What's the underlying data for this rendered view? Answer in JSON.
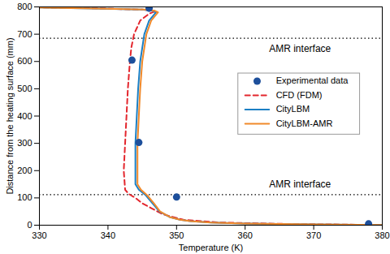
{
  "chart_data": {
    "type": "line",
    "x_label": "Temperature (K)",
    "y_label": "Distance from the heating surface (mm)",
    "xlim": [
      330,
      380
    ],
    "xticks": [
      330,
      340,
      350,
      360,
      370,
      380
    ],
    "ylim": [
      0,
      800
    ],
    "yticks": [
      0,
      100,
      200,
      300,
      400,
      500,
      600,
      700,
      800
    ],
    "grid": false,
    "legend": "right",
    "annotations": [
      {
        "text": "AMR interface",
        "y": 685
      },
      {
        "text": "AMR interface",
        "y": 112
      }
    ],
    "series": [
      {
        "name": "CFD (FDM)",
        "type": "line",
        "line_style": "dashed",
        "color": "#e3262d",
        "y": [
          0,
          5,
          10,
          20,
          40,
          60,
          80,
          100,
          115,
          130,
          200,
          300,
          400,
          500,
          600,
          650,
          700,
          750,
          775,
          785,
          790,
          795,
          798
        ],
        "values": [
          382,
          365,
          356,
          351,
          348,
          346.5,
          345,
          344,
          343,
          342.5,
          342.3,
          342.5,
          342.7,
          342.9,
          343.2,
          343.4,
          343.8,
          344.7,
          346,
          347,
          345,
          338,
          330
        ]
      },
      {
        "name": "CityLBM",
        "type": "line",
        "line_style": "solid",
        "color": "#1b7fc4",
        "y": [
          0,
          3,
          6,
          10,
          15,
          20,
          30,
          50,
          80,
          110,
          130,
          150,
          200,
          300,
          400,
          500,
          600,
          700,
          750,
          780,
          786,
          790,
          794,
          797,
          798
        ],
        "values": [
          382,
          370,
          360,
          355,
          352,
          350.5,
          349,
          347.5,
          346.5,
          345.5,
          344.5,
          344,
          344,
          344,
          344.2,
          344.4,
          344.7,
          345.3,
          346,
          347,
          346.5,
          345,
          338,
          331,
          330
        ]
      },
      {
        "name": "CityLBM-AMR",
        "type": "line",
        "line_style": "solid",
        "color": "#f0892a",
        "y": [
          0,
          3,
          6,
          10,
          15,
          20,
          30,
          50,
          80,
          110,
          130,
          150,
          200,
          300,
          400,
          500,
          600,
          700,
          750,
          780,
          786,
          790,
          794,
          797,
          798
        ],
        "values": [
          382,
          370,
          360,
          355,
          352,
          350.5,
          349,
          347.6,
          346.7,
          345.7,
          344.8,
          344.3,
          344.3,
          344.3,
          344.5,
          344.7,
          345,
          345.6,
          346.3,
          347.3,
          346.8,
          345.3,
          338.3,
          331.3,
          330
        ]
      },
      {
        "name": "Experimental data",
        "type": "scatter",
        "marker": "circle",
        "color": "#1d4f9b",
        "y": [
          5,
          103,
          303,
          605,
          795
        ],
        "values": [
          378,
          350,
          344.5,
          343.5,
          346
        ]
      }
    ]
  }
}
